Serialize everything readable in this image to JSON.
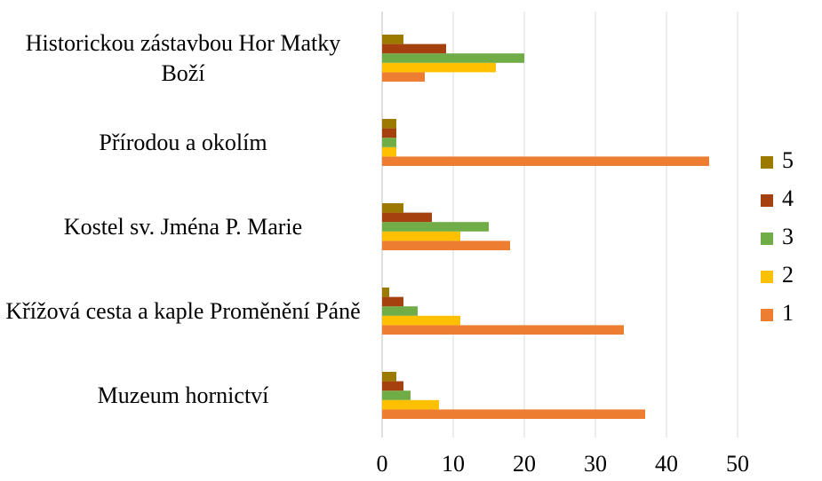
{
  "chart_data": {
    "type": "barh",
    "categories": [
      "Historickou zástavbou Hor Matky Boží",
      "Přírodou a okolím",
      "Kostel sv. Jména P. Marie",
      "Křížová cesta a kaple Proměnění Páně",
      "Muzeum hornictví"
    ],
    "series": [
      {
        "name": "1",
        "color": "#ED7D31",
        "values": [
          6,
          46,
          18,
          34,
          37
        ]
      },
      {
        "name": "2",
        "color": "#FFC000",
        "values": [
          16,
          2,
          11,
          11,
          8
        ]
      },
      {
        "name": "3",
        "color": "#70AD47",
        "values": [
          20,
          2,
          15,
          5,
          4
        ]
      },
      {
        "name": "4",
        "color": "#A5410E",
        "values": [
          9,
          2,
          7,
          3,
          3
        ]
      },
      {
        "name": "5",
        "color": "#9C7A00",
        "values": [
          3,
          2,
          3,
          1,
          2
        ]
      }
    ],
    "xlim": [
      0,
      50
    ],
    "xticks": [
      0,
      10,
      20,
      30,
      40,
      50
    ],
    "grid": true,
    "legend": "right"
  }
}
